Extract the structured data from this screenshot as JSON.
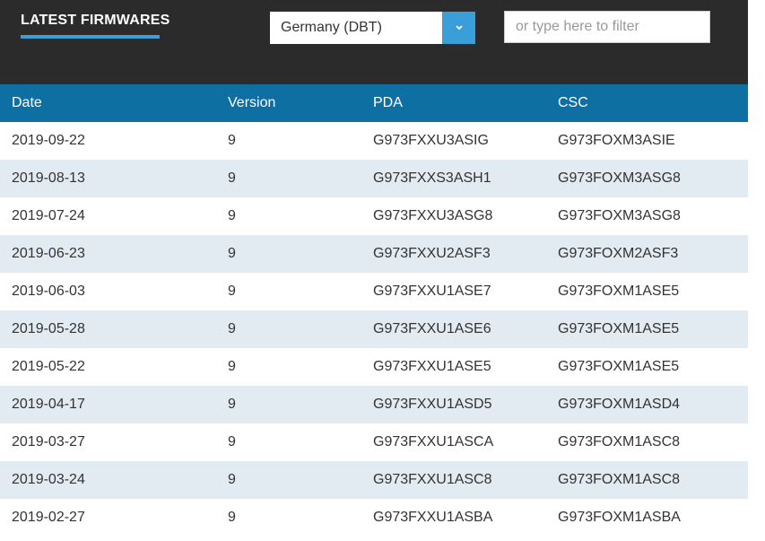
{
  "header": {
    "title": "LATEST FIRMWARES",
    "region_selected": "Germany (DBT)",
    "filter_placeholder": "or type here to filter"
  },
  "table": {
    "columns": [
      "Date",
      "Version",
      "PDA",
      "CSC"
    ],
    "rows": [
      {
        "date": "2019-09-22",
        "version": "9",
        "pda": "G973FXXU3ASIG",
        "csc": "G973FOXM3ASIE"
      },
      {
        "date": "2019-08-13",
        "version": "9",
        "pda": "G973FXXS3ASH1",
        "csc": "G973FOXM3ASG8"
      },
      {
        "date": "2019-07-24",
        "version": "9",
        "pda": "G973FXXU3ASG8",
        "csc": "G973FOXM3ASG8"
      },
      {
        "date": "2019-06-23",
        "version": "9",
        "pda": "G973FXXU2ASF3",
        "csc": "G973FOXM2ASF3"
      },
      {
        "date": "2019-06-03",
        "version": "9",
        "pda": "G973FXXU1ASE7",
        "csc": "G973FOXM1ASE5"
      },
      {
        "date": "2019-05-28",
        "version": "9",
        "pda": "G973FXXU1ASE6",
        "csc": "G973FOXM1ASE5"
      },
      {
        "date": "2019-05-22",
        "version": "9",
        "pda": "G973FXXU1ASE5",
        "csc": "G973FOXM1ASE5"
      },
      {
        "date": "2019-04-17",
        "version": "9",
        "pda": "G973FXXU1ASD5",
        "csc": "G973FOXM1ASD4"
      },
      {
        "date": "2019-03-27",
        "version": "9",
        "pda": "G973FXXU1ASCA",
        "csc": "G973FOXM1ASC8"
      },
      {
        "date": "2019-03-24",
        "version": "9",
        "pda": "G973FXXU1ASC8",
        "csc": "G973FOXM1ASC8"
      },
      {
        "date": "2019-02-27",
        "version": "9",
        "pda": "G973FXXU1ASBA",
        "csc": "G973FOXM1ASBA"
      }
    ]
  },
  "icons": {
    "dropdown": "chevron-down-icon"
  },
  "colors": {
    "topbar": "#2b2b2b",
    "accent": "#3a9fd8",
    "table_header": "#0e6fa3",
    "row_alt": "#e2eaf2"
  }
}
